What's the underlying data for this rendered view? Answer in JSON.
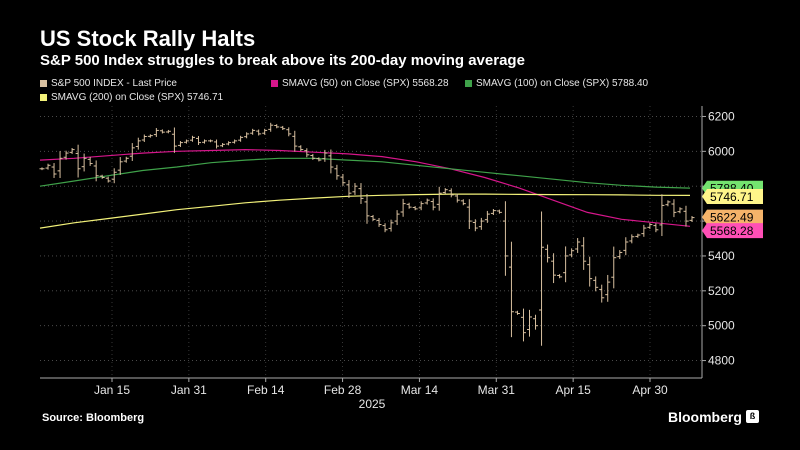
{
  "title": "US Stock Rally Halts",
  "subtitle": "S&P 500 Index struggles to break above its 200-day moving average",
  "source": "Source: Bloomberg",
  "brand": "Bloomberg",
  "brand_icon": "bloomberg-icon",
  "colors": {
    "background": "#000000",
    "price": "#d8c0a0",
    "sma50": "#d6168b",
    "sma100": "#3fa24a",
    "sma200": "#f3f27a",
    "tag_price": "#f5b36a",
    "tag_sma50": "#ff4fb6",
    "tag_sma100": "#74e36f",
    "tag_sma200": "#fff58a"
  },
  "chart_data": {
    "type": "line",
    "style": "ohlc-bars",
    "x_tick_labels": [
      "Jan 15",
      "Jan 31",
      "Feb 14",
      "Feb 28",
      "Mar 14",
      "Mar 31",
      "Apr 15",
      "Apr 30"
    ],
    "x_year_label": "2025",
    "y_ticks": [
      6200,
      6000,
      5800,
      5600,
      5400,
      5200,
      5000,
      4800
    ],
    "ylim": [
      4700,
      6260
    ],
    "y_axis_side": "right",
    "grid": "dotted",
    "legend_position": "top",
    "series": [
      {
        "name": "S&P 500 INDEX - Last Price",
        "legend_text": "S&P 500 INDEX - Last Price",
        "last_value": "5622.49",
        "values": [
          5900,
          5920,
          5870,
          5960,
          5990,
          6010,
          5900,
          5960,
          5930,
          5860,
          5850,
          5830,
          5880,
          5940,
          5960,
          6020,
          6060,
          6085,
          6090,
          6120,
          6110,
          6115,
          6030,
          6050,
          6060,
          6080,
          6050,
          6060,
          6060,
          6030,
          6040,
          6050,
          6060,
          6080,
          6100,
          6120,
          6100,
          6120,
          6150,
          6140,
          6130,
          6100,
          6030,
          6010,
          5980,
          5960,
          5950,
          5990,
          5910,
          5860,
          5820,
          5760,
          5800,
          5730,
          5630,
          5610,
          5580,
          5550,
          5590,
          5640,
          5700,
          5680,
          5670,
          5700,
          5720,
          5680,
          5760,
          5780,
          5750,
          5720,
          5700,
          5600,
          5560,
          5600,
          5640,
          5660,
          5650,
          5400,
          5080,
          5070,
          4960,
          5050,
          5000,
          5450,
          5390,
          5290,
          5280,
          5400,
          5430,
          5480,
          5370,
          5270,
          5220,
          5160,
          5250,
          5390,
          5420,
          5480,
          5510,
          5520,
          5560,
          5580,
          5550,
          5690,
          5710,
          5650,
          5670,
          5600,
          5620
        ]
      },
      {
        "name": "SMAVG (50)  on Close (SPX)",
        "legend_text": "SMAVG (50)  on Close (SPX) 5568.28",
        "last_value": "5568.28",
        "values": [
          5950,
          5960,
          5975,
          5990,
          6000,
          6005,
          6010,
          6005,
          5995,
          5985,
          5970,
          5940,
          5900,
          5850,
          5790,
          5720,
          5650,
          5610,
          5590,
          5570
        ]
      },
      {
        "name": "SMAVG (100)  on Close (SPX)",
        "legend_text": "SMAVG (100)  on Close (SPX) 5788.40",
        "last_value": "5788.40",
        "values": [
          5800,
          5830,
          5860,
          5890,
          5910,
          5935,
          5950,
          5960,
          5960,
          5950,
          5940,
          5920,
          5900,
          5880,
          5860,
          5840,
          5820,
          5805,
          5795,
          5789
        ]
      },
      {
        "name": "SMAVG (200)  on Close (SPX)",
        "legend_text": "SMAVG (200)  on Close (SPX) 5746.71",
        "last_value": "5746.71",
        "values": [
          5560,
          5590,
          5615,
          5640,
          5665,
          5685,
          5705,
          5720,
          5732,
          5742,
          5748,
          5752,
          5755,
          5755,
          5753,
          5752,
          5751,
          5750,
          5748,
          5747
        ]
      }
    ]
  }
}
